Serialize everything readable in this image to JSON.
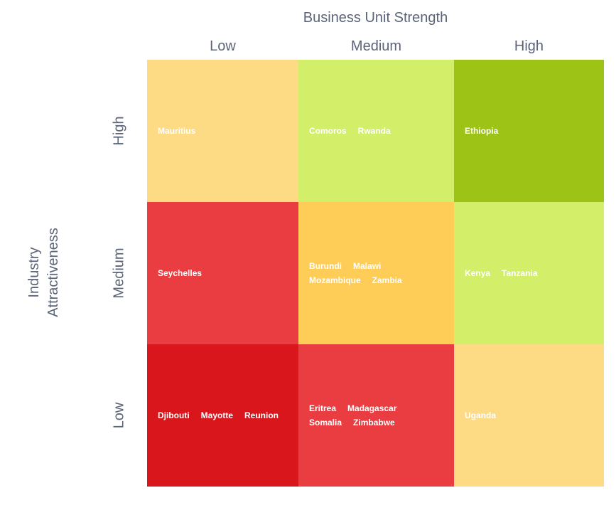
{
  "chart_data": {
    "type": "heatmap",
    "x_title": "Business Unit Strength",
    "y_title": [
      "Industry",
      "Attractiveness"
    ],
    "x_categories": [
      "Low",
      "Medium",
      "High"
    ],
    "y_categories": [
      "High",
      "Medium",
      "Low"
    ],
    "cells": [
      {
        "row": 0,
        "col": 0,
        "color": "#fdda84",
        "lines": [
          [
            "Mauritius"
          ]
        ]
      },
      {
        "row": 0,
        "col": 1,
        "color": "#d3ee68",
        "lines": [
          [
            "Comoros",
            "Rwanda"
          ]
        ]
      },
      {
        "row": 0,
        "col": 2,
        "color": "#9ec317",
        "lines": [
          [
            "Ethiopia"
          ]
        ]
      },
      {
        "row": 1,
        "col": 0,
        "color": "#e93d41",
        "lines": [
          [
            "Seychelles"
          ]
        ]
      },
      {
        "row": 1,
        "col": 1,
        "color": "#fecd57",
        "lines": [
          [
            "Burundi",
            "Malawi"
          ],
          [
            "Mozambique",
            "Zambia"
          ]
        ]
      },
      {
        "row": 1,
        "col": 2,
        "color": "#d3ee68",
        "lines": [
          [
            "Kenya",
            "Tanzania"
          ]
        ]
      },
      {
        "row": 2,
        "col": 0,
        "color": "#da161d",
        "lines": [
          [
            "Djibouti",
            "Mayotte",
            "Reunion"
          ]
        ]
      },
      {
        "row": 2,
        "col": 1,
        "color": "#e93d41",
        "lines": [
          [
            "Eritrea",
            "Madagascar"
          ],
          [
            "Somalia",
            "Zimbabwe"
          ]
        ]
      },
      {
        "row": 2,
        "col": 2,
        "color": "#fdda84",
        "lines": [
          [
            "Uganda"
          ]
        ]
      }
    ]
  }
}
